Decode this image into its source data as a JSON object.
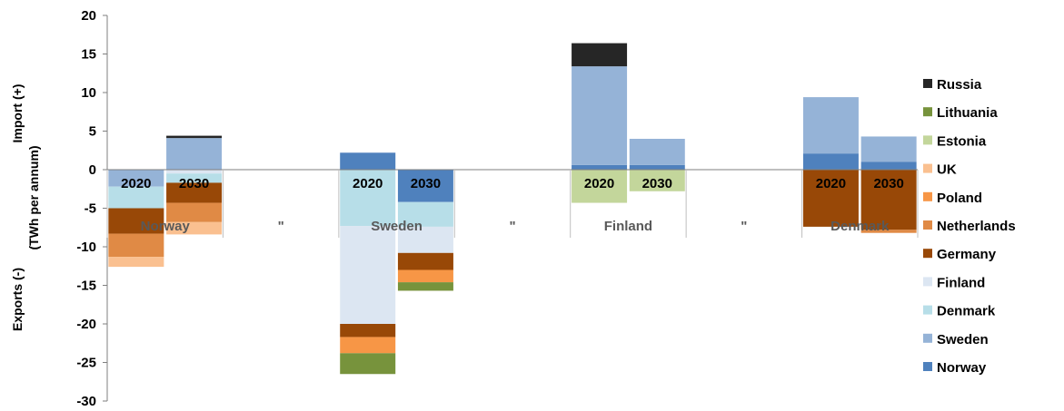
{
  "chart_data": {
    "type": "bar",
    "stacked": true,
    "ylabel_top": "Import (+)",
    "ylabel_mid": "(TWh per annum)",
    "ylabel_bottom": "Exports (-)",
    "ylim": [
      -30,
      20
    ],
    "yticks": [
      20,
      15,
      10,
      5,
      0,
      -5,
      -10,
      -15,
      -20,
      -25,
      -30
    ],
    "groups": [
      "Norway",
      "\"",
      "Sweden",
      "\"",
      "Finland",
      "\"",
      "Denmark"
    ],
    "bars": [
      {
        "group": "Norway",
        "year": "2020",
        "segments": [
          {
            "series": "Sweden",
            "value": -2.2
          },
          {
            "series": "Denmark",
            "value": -2.8
          },
          {
            "series": "Germany",
            "value": -3.3
          },
          {
            "series": "Netherlands",
            "value": -3.0
          },
          {
            "series": "UK",
            "value": -1.3
          }
        ]
      },
      {
        "group": "Norway",
        "year": "2030",
        "segments": [
          {
            "series": "Sweden",
            "value": 4.1
          },
          {
            "series": "Russia",
            "value": 0.3
          },
          {
            "series": "Finland",
            "value": -0.5
          },
          {
            "series": "Denmark",
            "value": -1.2
          },
          {
            "series": "Germany",
            "value": -2.6
          },
          {
            "series": "Netherlands",
            "value": -2.5
          },
          {
            "series": "UK",
            "value": -1.6
          }
        ]
      },
      {
        "group": "Sweden",
        "year": "2020",
        "segments": [
          {
            "series": "Norway",
            "value": 2.2
          },
          {
            "series": "Denmark",
            "value": -7.3
          },
          {
            "series": "Finland",
            "value": -12.7
          },
          {
            "series": "Germany",
            "value": -1.7
          },
          {
            "series": "Poland",
            "value": -2.1
          },
          {
            "series": "Lithuania",
            "value": -2.7
          }
        ]
      },
      {
        "group": "Sweden",
        "year": "2030",
        "segments": [
          {
            "series": "Norway",
            "value": -4.2
          },
          {
            "series": "Denmark",
            "value": -3.2
          },
          {
            "series": "Finland",
            "value": -3.4
          },
          {
            "series": "Germany",
            "value": -2.2
          },
          {
            "series": "Poland",
            "value": -1.6
          },
          {
            "series": "Lithuania",
            "value": -1.1
          }
        ]
      },
      {
        "group": "Finland",
        "year": "2020",
        "segments": [
          {
            "series": "Norway",
            "value": 0.6
          },
          {
            "series": "Sweden",
            "value": 12.8
          },
          {
            "series": "Russia",
            "value": 3.0
          },
          {
            "series": "Estonia",
            "value": -4.3
          }
        ]
      },
      {
        "group": "Finland",
        "year": "2030",
        "segments": [
          {
            "series": "Norway",
            "value": 0.6
          },
          {
            "series": "Sweden",
            "value": 3.4
          },
          {
            "series": "Estonia",
            "value": -2.8
          }
        ]
      },
      {
        "group": "Denmark",
        "year": "2020",
        "segments": [
          {
            "series": "Norway",
            "value": 2.1
          },
          {
            "series": "Sweden",
            "value": 7.3
          },
          {
            "series": "Germany",
            "value": -7.4
          }
        ]
      },
      {
        "group": "Denmark",
        "year": "2030",
        "segments": [
          {
            "series": "Norway",
            "value": 1.0
          },
          {
            "series": "Sweden",
            "value": 3.3
          },
          {
            "series": "Germany",
            "value": -7.8
          },
          {
            "series": "Netherlands",
            "value": -0.4
          }
        ]
      }
    ],
    "legend": {
      "placement": "right",
      "entries": [
        {
          "name": "Russia",
          "color": "#262626"
        },
        {
          "name": "Lithuania",
          "color": "#77933c"
        },
        {
          "name": "Estonia",
          "color": "#c3d69b"
        },
        {
          "name": "UK",
          "color": "#fac090"
        },
        {
          "name": "Poland",
          "color": "#f79646"
        },
        {
          "name": "Netherlands",
          "color": "#e08a45"
        },
        {
          "name": "Germany",
          "color": "#984807"
        },
        {
          "name": "Finland",
          "color": "#dce6f2"
        },
        {
          "name": "Denmark",
          "color": "#b7dee8"
        },
        {
          "name": "Sweden",
          "color": "#95b3d7"
        },
        {
          "name": "Norway",
          "color": "#4f81bd"
        }
      ]
    }
  }
}
